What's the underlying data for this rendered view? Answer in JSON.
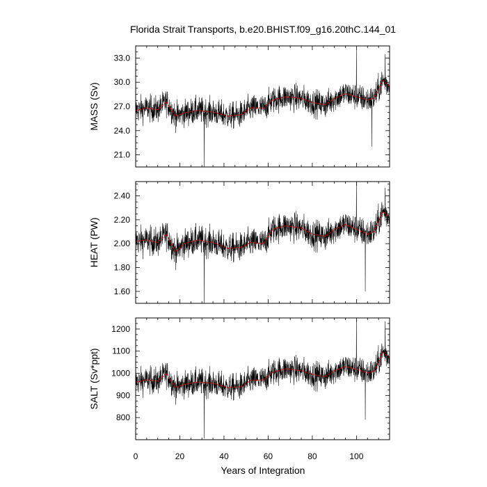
{
  "chart_data": {
    "type": "line",
    "title": "Florida Strait Transports, b.e20.BHIST.f09_g16.20thC.144_01",
    "xlabel": "Years of Integration",
    "xlim": [
      0,
      115
    ],
    "xticks": [
      0,
      20,
      40,
      60,
      80,
      100
    ],
    "xtick_labels": [
      "0",
      "20",
      "40",
      "60",
      "80",
      "100"
    ],
    "grid": false,
    "colors": {
      "raw": "#000000",
      "smoothed": "#cc0000"
    },
    "panels": [
      {
        "ylabel": "MASS (Sv)",
        "ylim": [
          19.5,
          34.5
        ],
        "yticks": [
          21.0,
          24.0,
          27.0,
          30.0,
          33.0
        ],
        "ytick_labels": [
          "21.0",
          "24.0",
          "27.0",
          "30.0",
          "33.0"
        ],
        "smoothed_knots": {
          "x": [
            0,
            5,
            10,
            14,
            18,
            22,
            28,
            35,
            42,
            48,
            52,
            58,
            62,
            68,
            75,
            80,
            86,
            90,
            95,
            100,
            105,
            108,
            112,
            115
          ],
          "y": [
            26.5,
            26.8,
            26.6,
            27.6,
            25.8,
            26.2,
            26.5,
            26.3,
            25.8,
            26.0,
            26.8,
            26.8,
            27.8,
            28.2,
            28.0,
            27.5,
            27.2,
            28.0,
            28.6,
            28.2,
            27.8,
            28.0,
            30.2,
            29.5
          ]
        },
        "noise": 1.5,
        "spikes": [
          [
            100,
            34.0
          ],
          [
            31,
            19.5
          ],
          [
            107,
            22.0
          ],
          [
            113,
            33.5
          ]
        ]
      },
      {
        "ylabel": "HEAT (PW)",
        "ylim": [
          1.5,
          2.52
        ],
        "yticks": [
          1.6,
          1.8,
          2.0,
          2.2,
          2.4
        ],
        "ytick_labels": [
          "1.60",
          "1.80",
          "2.00",
          "2.20",
          "2.40"
        ],
        "smoothed_knots": {
          "x": [
            0,
            5,
            10,
            14,
            18,
            22,
            28,
            35,
            42,
            48,
            52,
            58,
            62,
            68,
            75,
            80,
            86,
            90,
            95,
            100,
            105,
            108,
            112,
            115
          ],
          "y": [
            2.02,
            2.03,
            2.01,
            2.08,
            1.93,
            2.0,
            2.03,
            2.01,
            1.96,
            1.97,
            2.01,
            2.0,
            2.12,
            2.15,
            2.13,
            2.08,
            2.06,
            2.12,
            2.16,
            2.12,
            2.08,
            2.1,
            2.27,
            2.22
          ]
        },
        "noise": 0.11,
        "spikes": [
          [
            100,
            2.52
          ],
          [
            31,
            1.5
          ],
          [
            104,
            1.6
          ],
          [
            113,
            2.47
          ]
        ]
      },
      {
        "ylabel": "SALT (Sv*ppt)",
        "ylim": [
          700,
          1250
        ],
        "yticks": [
          800,
          900,
          1000,
          1100,
          1200
        ],
        "ytick_labels": [
          "800",
          "900",
          "1000",
          "1100",
          "1200"
        ],
        "smoothed_knots": {
          "x": [
            0,
            5,
            10,
            14,
            18,
            22,
            28,
            35,
            42,
            48,
            52,
            58,
            62,
            68,
            75,
            80,
            86,
            90,
            95,
            100,
            105,
            108,
            112,
            115
          ],
          "y": [
            960,
            970,
            965,
            1000,
            935,
            950,
            960,
            955,
            935,
            940,
            968,
            970,
            1005,
            1020,
            1012,
            995,
            985,
            1012,
            1030,
            1018,
            1002,
            1008,
            1095,
            1070
          ]
        },
        "noise": 55,
        "spikes": [
          [
            100,
            1245
          ],
          [
            31,
            705
          ],
          [
            104,
            790
          ],
          [
            113,
            1235
          ]
        ]
      }
    ]
  }
}
